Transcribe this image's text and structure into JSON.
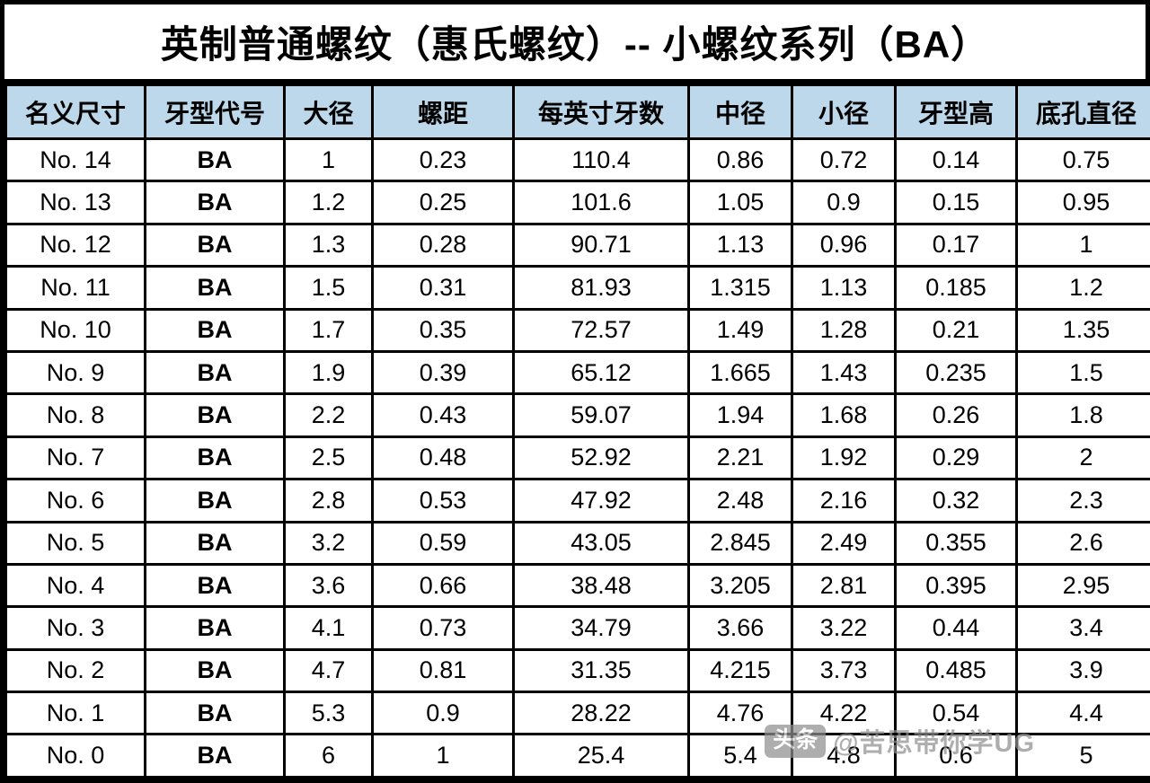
{
  "title": "英制普通螺纹（惠氏螺纹）-- 小螺纹系列（BA）",
  "watermark": {
    "badge": "头条",
    "handle": "@苦思带你学UG"
  },
  "colors": {
    "header_bg": "#bcd8ea",
    "border": "#000000",
    "watermark_gray": "#8f8f8f"
  },
  "table": {
    "headers": [
      "名义尺寸",
      "牙型代号",
      "大径",
      "螺距",
      "每英寸牙数",
      "中径",
      "小径",
      "牙型高",
      "底孔直径"
    ],
    "rows": [
      [
        "No. 14",
        "BA",
        "1",
        "0.23",
        "110.4",
        "0.86",
        "0.72",
        "0.14",
        "0.75"
      ],
      [
        "No. 13",
        "BA",
        "1.2",
        "0.25",
        "101.6",
        "1.05",
        "0.9",
        "0.15",
        "0.95"
      ],
      [
        "No. 12",
        "BA",
        "1.3",
        "0.28",
        "90.71",
        "1.13",
        "0.96",
        "0.17",
        "1"
      ],
      [
        "No. 11",
        "BA",
        "1.5",
        "0.31",
        "81.93",
        "1.315",
        "1.13",
        "0.185",
        "1.2"
      ],
      [
        "No. 10",
        "BA",
        "1.7",
        "0.35",
        "72.57",
        "1.49",
        "1.28",
        "0.21",
        "1.35"
      ],
      [
        "No. 9",
        "BA",
        "1.9",
        "0.39",
        "65.12",
        "1.665",
        "1.43",
        "0.235",
        "1.5"
      ],
      [
        "No. 8",
        "BA",
        "2.2",
        "0.43",
        "59.07",
        "1.94",
        "1.68",
        "0.26",
        "1.8"
      ],
      [
        "No. 7",
        "BA",
        "2.5",
        "0.48",
        "52.92",
        "2.21",
        "1.92",
        "0.29",
        "2"
      ],
      [
        "No. 6",
        "BA",
        "2.8",
        "0.53",
        "47.92",
        "2.48",
        "2.16",
        "0.32",
        "2.3"
      ],
      [
        "No. 5",
        "BA",
        "3.2",
        "0.59",
        "43.05",
        "2.845",
        "2.49",
        "0.355",
        "2.6"
      ],
      [
        "No. 4",
        "BA",
        "3.6",
        "0.66",
        "38.48",
        "3.205",
        "2.81",
        "0.395",
        "2.95"
      ],
      [
        "No. 3",
        "BA",
        "4.1",
        "0.73",
        "34.79",
        "3.66",
        "3.22",
        "0.44",
        "3.4"
      ],
      [
        "No. 2",
        "BA",
        "4.7",
        "0.81",
        "31.35",
        "4.215",
        "3.73",
        "0.485",
        "3.9"
      ],
      [
        "No. 1",
        "BA",
        "5.3",
        "0.9",
        "28.22",
        "4.76",
        "4.22",
        "0.54",
        "4.4"
      ],
      [
        "No. 0",
        "BA",
        "6",
        "1",
        "25.4",
        "5.4",
        "4.8",
        "0.6",
        "5"
      ]
    ]
  }
}
